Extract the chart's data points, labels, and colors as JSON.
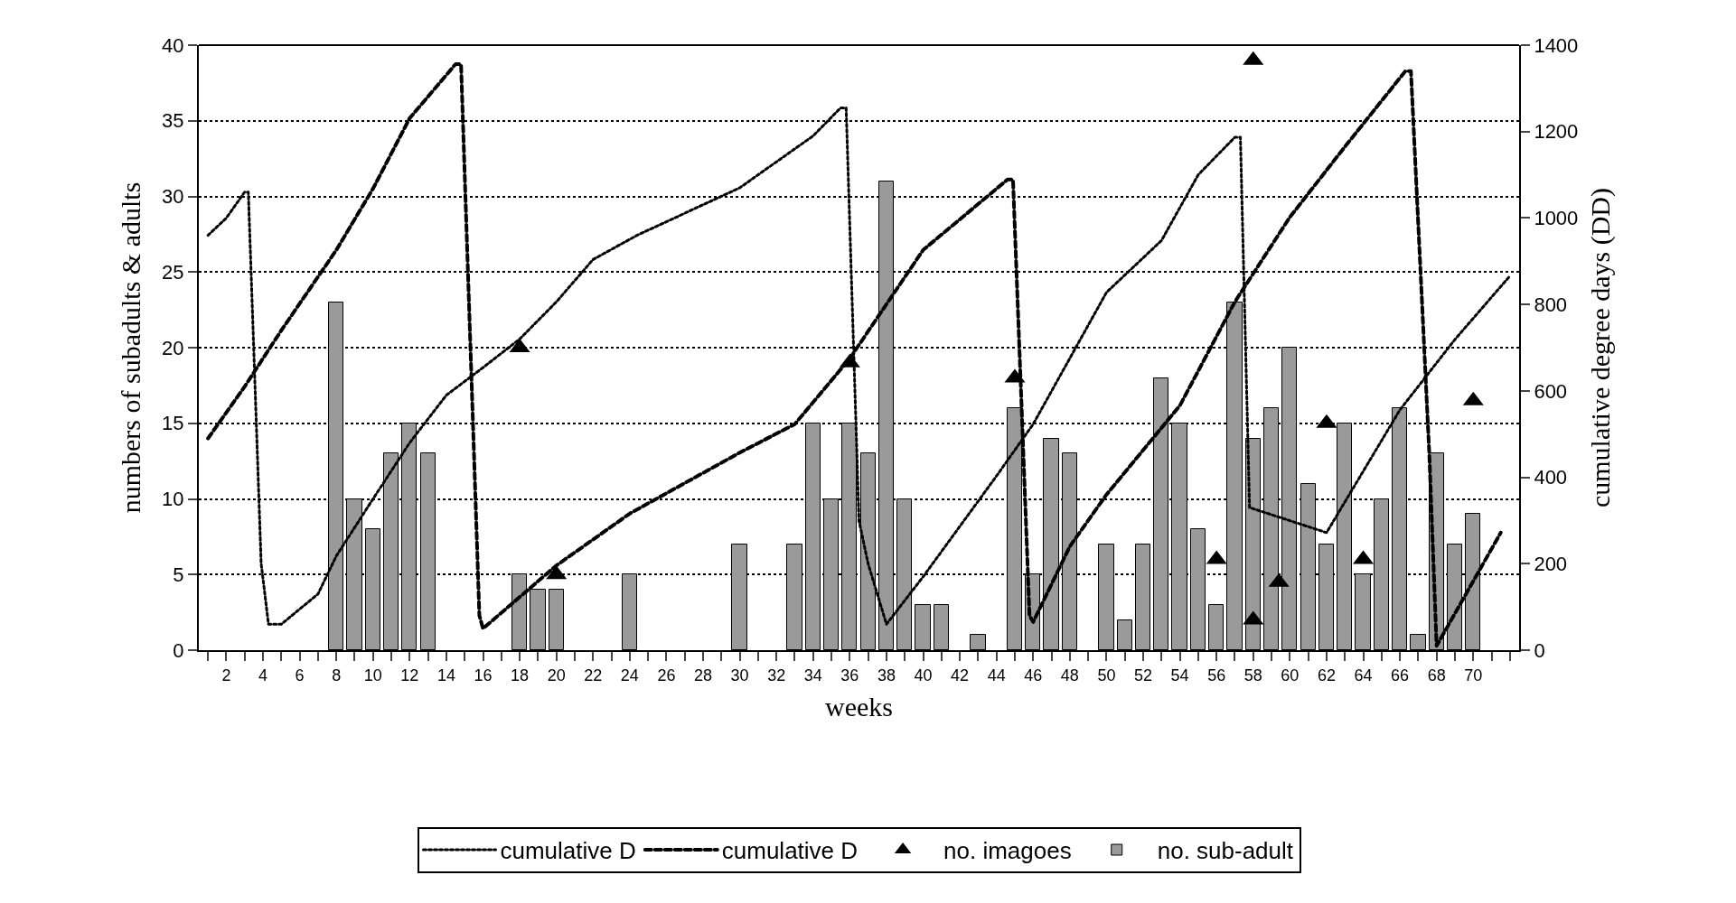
{
  "chart_data": {
    "type": "bar",
    "xlabel": "weeks",
    "ylabel": "numbers of subadults & adults",
    "y2label": "cumulative degree days (DD)",
    "xlim": [
      0.5,
      72.5
    ],
    "xticks": [
      {
        "value": 1,
        "label": null
      },
      2,
      {
        "value": 3,
        "label": null
      },
      4,
      {
        "value": 5,
        "label": null
      },
      6,
      {
        "value": 7,
        "label": null
      },
      8,
      {
        "value": 9,
        "label": null
      },
      10,
      {
        "value": 11,
        "label": null
      },
      12,
      {
        "value": 13,
        "label": null
      },
      14,
      {
        "value": 15,
        "label": null
      },
      16,
      {
        "value": 17,
        "label": null
      },
      18,
      {
        "value": 19,
        "label": null
      },
      20,
      {
        "value": 21,
        "label": null
      },
      22,
      {
        "value": 23,
        "label": null
      },
      24,
      {
        "value": 25,
        "label": null
      },
      26,
      {
        "value": 27,
        "label": null
      },
      28,
      {
        "value": 29,
        "label": null
      },
      30,
      {
        "value": 31,
        "label": null
      },
      32,
      {
        "value": 33,
        "label": null
      },
      34,
      {
        "value": 35,
        "label": null
      },
      36,
      {
        "value": 37,
        "label": null
      },
      38,
      {
        "value": 39,
        "label": null
      },
      40,
      {
        "value": 41,
        "label": null
      },
      42,
      {
        "value": 43,
        "label": null
      },
      44,
      {
        "value": 45,
        "label": null
      },
      46,
      {
        "value": 47,
        "label": null
      },
      48,
      {
        "value": 49,
        "label": null
      },
      50,
      {
        "value": 51,
        "label": null
      },
      52,
      {
        "value": 53,
        "label": null
      },
      54,
      {
        "value": 55,
        "label": null
      },
      56,
      {
        "value": 57,
        "label": null
      },
      58,
      {
        "value": 59,
        "label": null
      },
      60,
      {
        "value": 61,
        "label": null
      },
      62,
      {
        "value": 63,
        "label": null
      },
      64,
      {
        "value": 65,
        "label": null
      },
      66,
      {
        "value": 67,
        "label": null
      },
      68,
      {
        "value": 69,
        "label": null
      },
      70,
      {
        "value": 71,
        "label": null
      },
      {
        "value": 72,
        "label": null
      }
    ],
    "ylim": [
      0,
      40
    ],
    "yticks": [
      0,
      5,
      10,
      15,
      20,
      25,
      30,
      35,
      40
    ],
    "y2lim": [
      0,
      1400
    ],
    "y2ticks": [
      0,
      200,
      400,
      600,
      800,
      1000,
      1200,
      1400
    ],
    "grid": "y",
    "legend": "bottom",
    "series": [
      {
        "name": "cumulative D",
        "type": "line",
        "axis": "y2",
        "color": "#000000",
        "line_style": "dotted",
        "marker": "none",
        "x": [
          1,
          2,
          3,
          3.2,
          3.9,
          4.3,
          5,
          7,
          8,
          10,
          12,
          14,
          16,
          18,
          20,
          22,
          24.4,
          30,
          34,
          35.5,
          35.8,
          36.5,
          37,
          38,
          40,
          44,
          46,
          50,
          53,
          55,
          57,
          57.3,
          57.8,
          62,
          66,
          69,
          72
        ],
        "values": [
          960,
          1000,
          1060,
          1060,
          200,
          60,
          60,
          130,
          218,
          350,
          480,
          590,
          654,
          720,
          806,
          904,
          960,
          1070,
          1190,
          1255,
          1255,
          300,
          200,
          60,
          170,
          403,
          523,
          828,
          948,
          1100,
          1187,
          1187,
          330,
          272,
          556,
          719,
          866
        ]
      },
      {
        "name": "cumulative D",
        "type": "line",
        "axis": "y2",
        "color": "#000000",
        "line_style": "dashed",
        "marker": "none",
        "x": [
          1,
          3,
          5,
          8,
          10,
          12,
          14.5,
          14.8,
          15.8,
          16,
          20,
          24,
          30,
          33,
          36,
          40,
          44.6,
          44.9,
          45.8,
          46,
          48,
          50,
          54,
          57,
          60,
          63,
          66.3,
          66.6,
          67.6,
          68,
          71.5
        ],
        "values": [
          490,
          610,
          740,
          926,
          1068,
          1231,
          1356,
          1356,
          80,
          50,
          196,
          316,
          457,
          523,
          675,
          926,
          1089,
          1089,
          80,
          65,
          240,
          360,
          566,
          806,
          1002,
          1165,
          1340,
          1340,
          457,
          10,
          272
        ]
      },
      {
        "name": "no. imagoes",
        "type": "scatter",
        "color": "#000000",
        "marker": "triangle",
        "x": [
          18,
          20,
          36,
          45,
          56,
          58,
          58,
          59.4,
          62,
          64,
          70
        ],
        "values": [
          20,
          5,
          19,
          18,
          6,
          39,
          2,
          4.5,
          15,
          6,
          16.5
        ]
      },
      {
        "name": "no. sub-adult",
        "color": "#9a9a9a",
        "x": [
          8,
          9,
          10,
          11,
          12,
          13,
          18,
          19,
          20,
          24,
          30,
          33,
          34,
          35,
          36,
          37,
          38,
          39,
          40,
          41,
          43,
          45,
          46,
          47,
          48,
          50,
          51,
          52,
          53,
          54,
          55,
          56,
          57,
          58,
          59,
          60,
          61,
          62,
          63,
          64,
          65,
          66,
          67,
          68,
          69,
          70
        ],
        "values": [
          23,
          10,
          8,
          13,
          15,
          13,
          5,
          4,
          4,
          5,
          7,
          7,
          15,
          10,
          15,
          13,
          31,
          10,
          3,
          3,
          1,
          16,
          5,
          14,
          13,
          7,
          2,
          7,
          18,
          15,
          8,
          3,
          23,
          14,
          16,
          20,
          11,
          7,
          15,
          5,
          10,
          16,
          1,
          13,
          7,
          9
        ]
      }
    ]
  }
}
